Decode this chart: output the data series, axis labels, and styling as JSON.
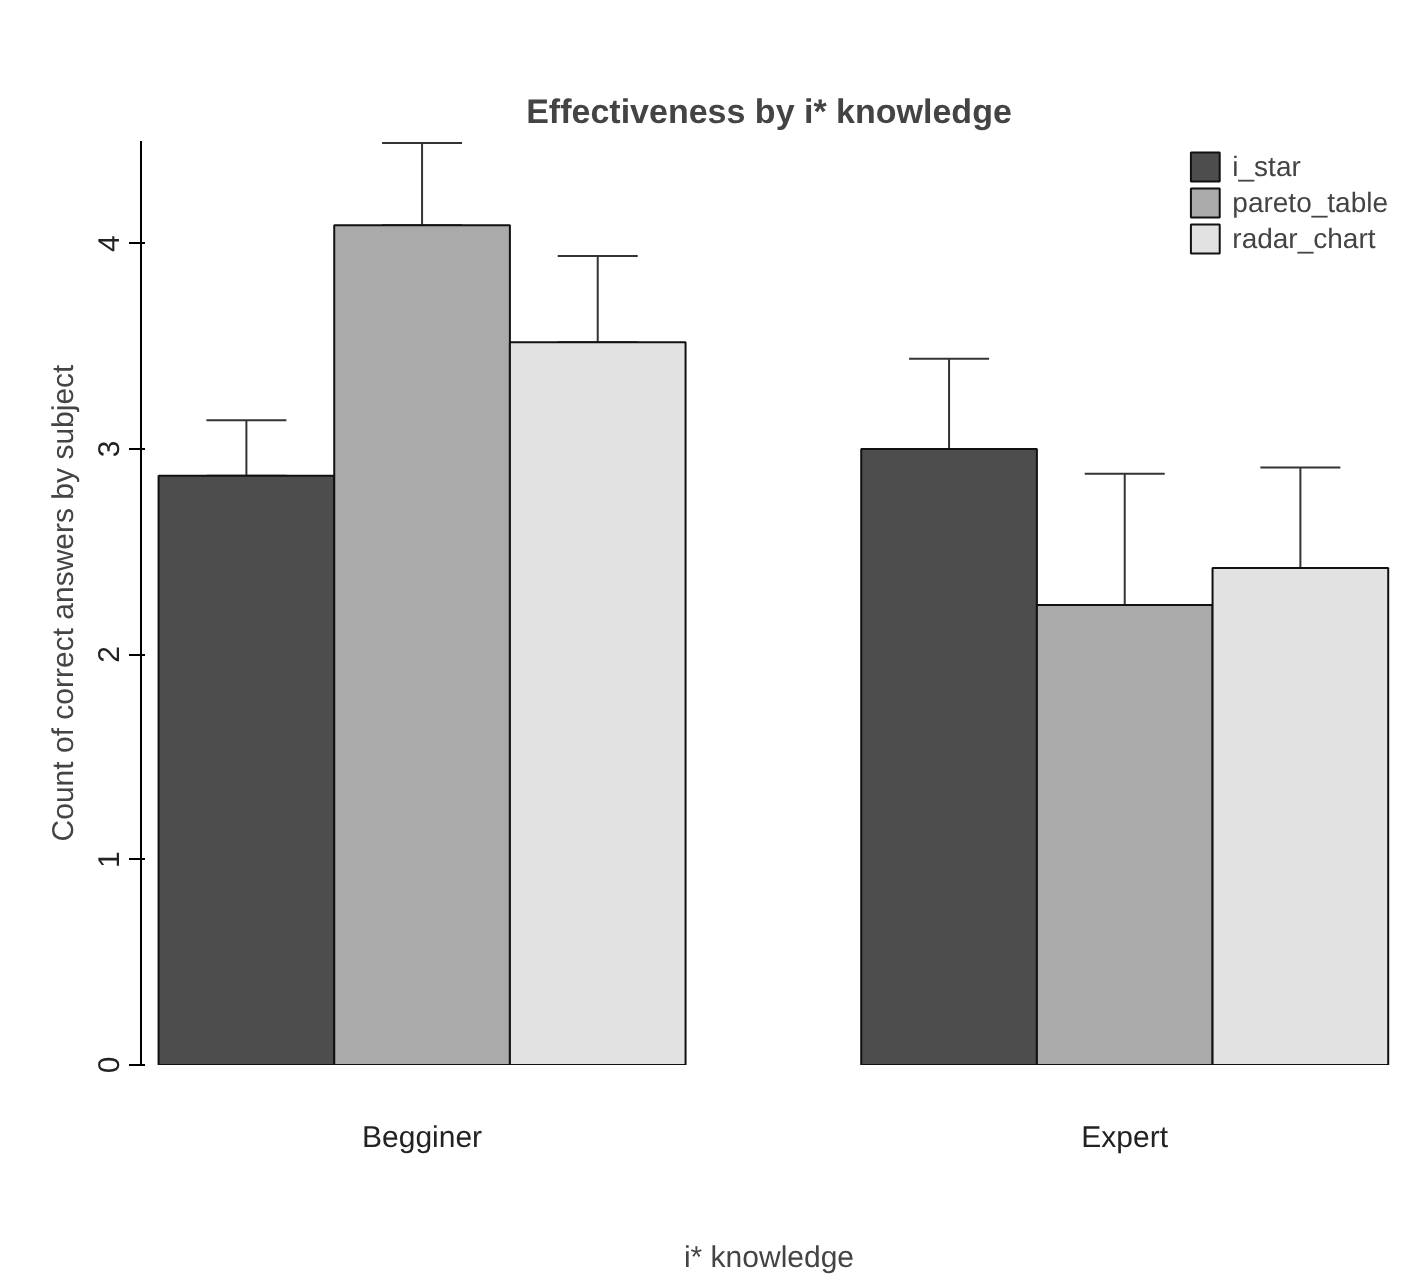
{
  "chart_data": {
    "type": "bar",
    "title": "Effectiveness by i* knowledge",
    "xlabel": "i* knowledge",
    "ylabel": "Count of correct answers by subject",
    "categories": [
      "Begginer",
      "Expert"
    ],
    "series": [
      {
        "name": "i_star",
        "color": "#4d4d4d",
        "values": [
          2.87,
          3.0
        ],
        "errors": [
          [
            2.87,
            3.14
          ],
          [
            3.0,
            3.44
          ]
        ]
      },
      {
        "name": "pareto_table",
        "color": "#aaaaaa",
        "values": [
          4.09,
          2.24
        ],
        "errors": [
          [
            4.09,
            4.49
          ],
          [
            2.24,
            2.88
          ]
        ]
      },
      {
        "name": "radar_chart",
        "color": "#e2e2e2",
        "values": [
          3.52,
          2.42
        ],
        "errors": [
          [
            3.52,
            3.94
          ],
          [
            2.42,
            2.91
          ]
        ]
      }
    ],
    "ylim": [
      0,
      4.5
    ],
    "yticks": [
      0,
      1,
      2,
      3,
      4
    ],
    "grid": false,
    "legend": "top right"
  }
}
